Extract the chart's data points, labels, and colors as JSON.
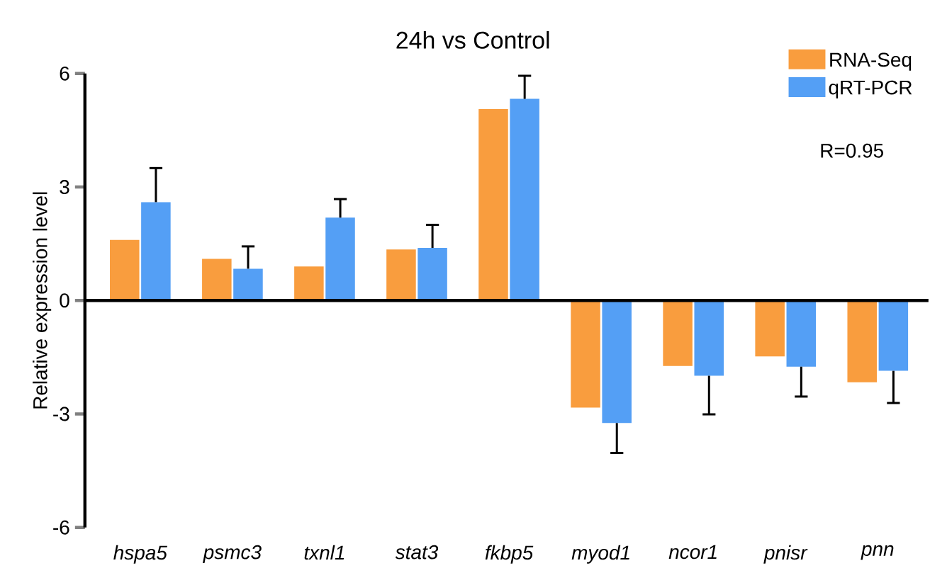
{
  "chart_data": {
    "type": "bar",
    "title": "24h vs Control",
    "ylabel": "Relative expression level",
    "categories": [
      "hspa5",
      "psmc3",
      "txnl1",
      "stat3",
      "fkbp5",
      "myod1",
      "ncor1",
      "pnisr",
      "pnn"
    ],
    "series": [
      {
        "name": "RNA-Seq",
        "color": "#f99d3e",
        "values": [
          1.6,
          1.1,
          0.9,
          1.35,
          5.06,
          -2.83,
          -1.73,
          -1.48,
          -2.16
        ]
      },
      {
        "name": "qRT-PCR",
        "color": "#549ff5",
        "values": [
          2.6,
          0.84,
          2.19,
          1.39,
          5.33,
          -3.24,
          -1.99,
          -1.75,
          -1.86
        ],
        "errors": [
          [
            2.6,
            3.5
          ],
          [
            0.84,
            1.43
          ],
          [
            2.19,
            2.68
          ],
          [
            1.39,
            2.0
          ],
          [
            5.33,
            5.94
          ],
          [
            -4.03,
            -3.24
          ],
          [
            -3.01,
            -1.99
          ],
          [
            -2.54,
            -1.75
          ],
          [
            -2.71,
            -1.86
          ]
        ]
      }
    ],
    "ylim": [
      -6,
      6
    ],
    "yticks": [
      -6,
      -3,
      0,
      3,
      6
    ],
    "legend": "top right",
    "annotations": [
      "R=0.95"
    ]
  }
}
